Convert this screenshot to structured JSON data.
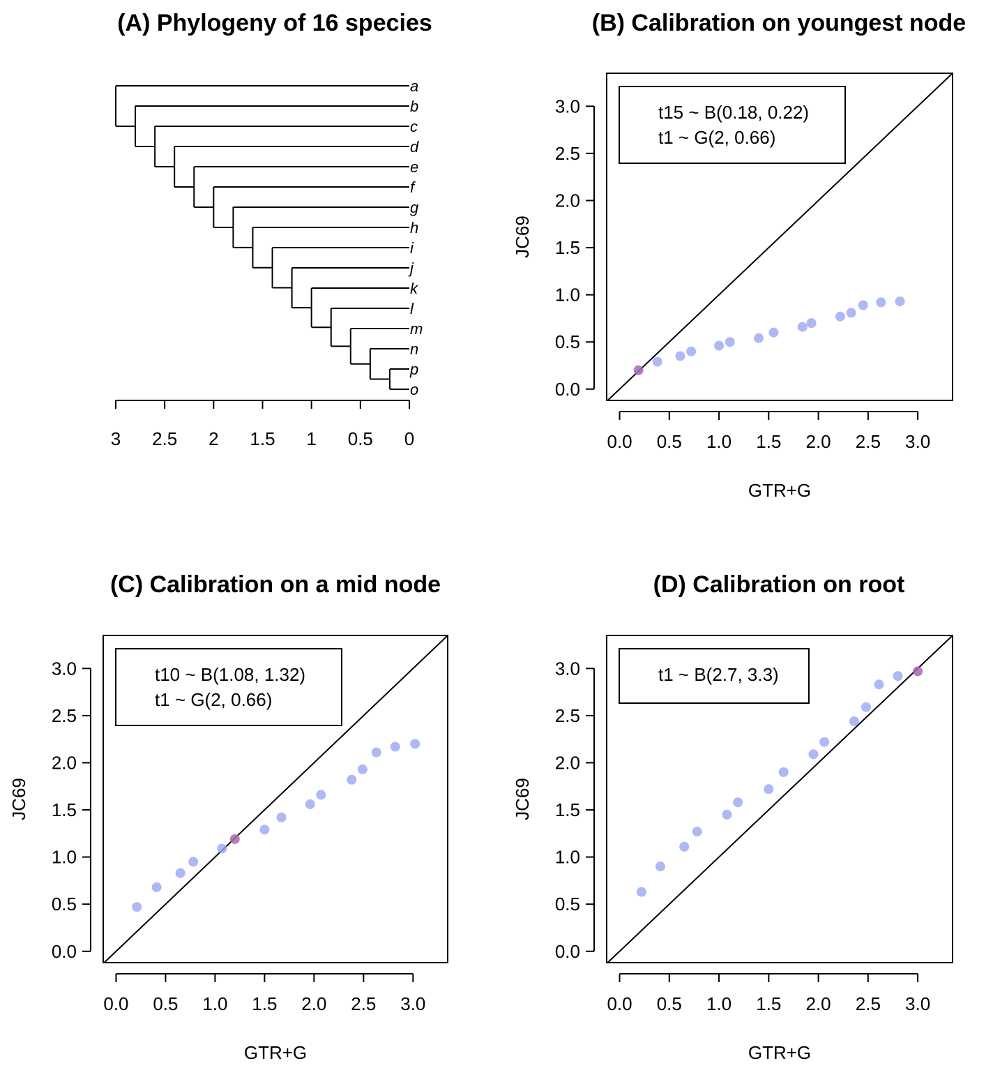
{
  "chart_data": [
    {
      "panel": "A",
      "type": "tree",
      "title": "(A) Phylogeny of 16 species",
      "xlim": [
        3,
        0
      ],
      "x_ticks": [
        3,
        2.5,
        2,
        1.5,
        1,
        0.5,
        0
      ],
      "x_tick_labels": [
        "3",
        "2.5",
        "2",
        "1.5",
        "1",
        "0.5",
        "0"
      ],
      "tips": [
        "a",
        "b",
        "c",
        "d",
        "e",
        "f",
        "g",
        "h",
        "i",
        "j",
        "k",
        "l",
        "m",
        "n",
        "p",
        "o"
      ],
      "node_ages": [
        3.0,
        2.8,
        2.6,
        2.4,
        2.2,
        2.0,
        1.8,
        1.6,
        1.4,
        1.2,
        1.0,
        0.8,
        0.6,
        0.4,
        0.2
      ]
    },
    {
      "panel": "B",
      "type": "scatter",
      "title": "(B) Calibration on youngest node",
      "xlabel": "GTR+G",
      "ylabel": "JC69",
      "xlim": [
        -0.13,
        3.35
      ],
      "ylim": [
        -0.12,
        3.35
      ],
      "x_ticks": [
        0.0,
        0.5,
        1.0,
        1.5,
        2.0,
        2.5,
        3.0
      ],
      "x_tick_labels": [
        "0.0",
        "0.5",
        "1.0",
        "1.5",
        "2.0",
        "2.5",
        "3.0"
      ],
      "y_ticks": [
        0.0,
        0.5,
        1.0,
        1.5,
        2.0,
        2.5,
        3.0
      ],
      "y_tick_labels": [
        "0.0",
        "0.5",
        "1.0",
        "1.5",
        "2.0",
        "2.5",
        "3.0"
      ],
      "legend": [
        "t15 ~ B(0.18, 0.22)",
        "t1 ~ G(2, 0.66)"
      ],
      "legend_position": "top-left",
      "reference_line": "y = x",
      "colors": {
        "point": "#9aa6f3",
        "calibrated_point": "#a46ab0"
      },
      "points": [
        [
          0.19,
          0.2
        ],
        [
          0.38,
          0.29
        ],
        [
          0.61,
          0.35
        ],
        [
          0.72,
          0.4
        ],
        [
          1.0,
          0.46
        ],
        [
          1.11,
          0.5
        ],
        [
          1.4,
          0.54
        ],
        [
          1.55,
          0.6
        ],
        [
          1.84,
          0.66
        ],
        [
          1.93,
          0.7
        ],
        [
          2.22,
          0.77
        ],
        [
          2.33,
          0.81
        ],
        [
          2.45,
          0.89
        ],
        [
          2.63,
          0.92
        ],
        [
          2.82,
          0.93
        ]
      ],
      "calibrated_index": 0
    },
    {
      "panel": "C",
      "type": "scatter",
      "title": "(C) Calibration on a mid node",
      "xlabel": "GTR+G",
      "ylabel": "JC69",
      "xlim": [
        -0.13,
        3.35
      ],
      "ylim": [
        -0.12,
        3.35
      ],
      "x_ticks": [
        0.0,
        0.5,
        1.0,
        1.5,
        2.0,
        2.5,
        3.0
      ],
      "x_tick_labels": [
        "0.0",
        "0.5",
        "1.0",
        "1.5",
        "2.0",
        "2.5",
        "3.0"
      ],
      "y_ticks": [
        0.0,
        0.5,
        1.0,
        1.5,
        2.0,
        2.5,
        3.0
      ],
      "y_tick_labels": [
        "0.0",
        "0.5",
        "1.0",
        "1.5",
        "2.0",
        "2.5",
        "3.0"
      ],
      "legend": [
        "t10 ~ B(1.08, 1.32)",
        "t1 ~ G(2, 0.66)"
      ],
      "legend_position": "top-left",
      "reference_line": "y = x",
      "colors": {
        "point": "#9aa6f3",
        "calibrated_point": "#a46ab0"
      },
      "points": [
        [
          0.21,
          0.47
        ],
        [
          0.41,
          0.68
        ],
        [
          0.65,
          0.83
        ],
        [
          0.78,
          0.95
        ],
        [
          1.07,
          1.09
        ],
        [
          1.2,
          1.19
        ],
        [
          1.5,
          1.29
        ],
        [
          1.67,
          1.42
        ],
        [
          1.96,
          1.56
        ],
        [
          2.07,
          1.66
        ],
        [
          2.38,
          1.82
        ],
        [
          2.49,
          1.93
        ],
        [
          2.63,
          2.11
        ],
        [
          2.82,
          2.17
        ],
        [
          3.02,
          2.2
        ]
      ],
      "calibrated_index": 5
    },
    {
      "panel": "D",
      "type": "scatter",
      "title": "(D) Calibration on root",
      "xlabel": "GTR+G",
      "ylabel": "JC69",
      "xlim": [
        -0.13,
        3.35
      ],
      "ylim": [
        -0.12,
        3.35
      ],
      "x_ticks": [
        0.0,
        0.5,
        1.0,
        1.5,
        2.0,
        2.5,
        3.0
      ],
      "x_tick_labels": [
        "0.0",
        "0.5",
        "1.0",
        "1.5",
        "2.0",
        "2.5",
        "3.0"
      ],
      "y_ticks": [
        0.0,
        0.5,
        1.0,
        1.5,
        2.0,
        2.5,
        3.0
      ],
      "y_tick_labels": [
        "0.0",
        "0.5",
        "1.0",
        "1.5",
        "2.0",
        "2.5",
        "3.0"
      ],
      "legend": [
        "t1 ~ B(2.7, 3.3)"
      ],
      "legend_position": "top-left",
      "reference_line": "y = x",
      "colors": {
        "point": "#9aa6f3",
        "calibrated_point": "#a46ab0"
      },
      "points": [
        [
          0.22,
          0.63
        ],
        [
          0.41,
          0.9
        ],
        [
          0.65,
          1.11
        ],
        [
          0.78,
          1.27
        ],
        [
          1.08,
          1.45
        ],
        [
          1.19,
          1.58
        ],
        [
          1.5,
          1.72
        ],
        [
          1.65,
          1.9
        ],
        [
          1.95,
          2.09
        ],
        [
          2.06,
          2.22
        ],
        [
          2.36,
          2.44
        ],
        [
          2.48,
          2.59
        ],
        [
          2.61,
          2.83
        ],
        [
          2.8,
          2.92
        ],
        [
          3.0,
          2.97
        ]
      ],
      "calibrated_index": 14
    }
  ]
}
